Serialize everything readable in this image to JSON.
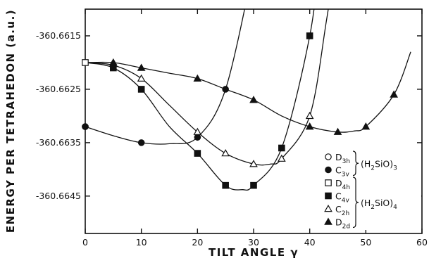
{
  "chart_data": {
    "type": "scatter",
    "xlabel": "TILT ANGLE γ",
    "ylabel": "ENERGY PER TETRAHEDON (a.u.)",
    "xlim": [
      0,
      60
    ],
    "ylim": [
      -360.6652,
      -360.661
    ],
    "x_ticks": [
      0,
      10,
      20,
      30,
      40,
      50,
      60
    ],
    "y_ticks": [
      -360.6615,
      -360.6625,
      -360.6635,
      -360.6645
    ],
    "y_tick_labels": [
      "-360.6615",
      "-360.6625",
      "-360.6635",
      "-360.6645"
    ],
    "grid": false,
    "legend_position": "right",
    "legend_groups": [
      {
        "label_main": "(H",
        "label_sub": "2",
        "label_end": "SiO)",
        "label_sub2": "3",
        "members": [
          "D3h",
          "C3v"
        ]
      },
      {
        "label_main": "(H",
        "label_sub": "2",
        "label_end": "SiO)",
        "label_sub2": "4",
        "members": [
          "D4h",
          "C4v",
          "C2h",
          "D2d"
        ]
      }
    ],
    "series": [
      {
        "name": "D3h",
        "name_main": "D",
        "name_sub": "3h",
        "marker": "open-circle",
        "x": [
          0
        ],
        "y": [
          -360.6632
        ],
        "curve": null
      },
      {
        "name": "C3v",
        "name_main": "C",
        "name_sub": "3v",
        "marker": "filled-circle",
        "x": [
          0,
          10,
          20,
          25
        ],
        "y": [
          -360.6632,
          -360.6635,
          -360.6634,
          -360.6625
        ],
        "curve": [
          [
            0,
            -360.6632
          ],
          [
            5,
            -360.66337
          ],
          [
            10,
            -360.6635
          ],
          [
            15,
            -360.66352
          ],
          [
            20,
            -360.6634
          ],
          [
            25,
            -360.6625
          ],
          [
            30,
            -360.6602
          ]
        ]
      },
      {
        "name": "D4h",
        "name_main": "D",
        "name_sub": "4h",
        "marker": "open-square",
        "x": [
          0
        ],
        "y": [
          -360.662
        ],
        "curve": null
      },
      {
        "name": "C4v",
        "name_main": "C",
        "name_sub": "4v",
        "marker": "filled-square",
        "x": [
          5,
          10,
          20,
          25,
          30,
          35,
          40
        ],
        "y": [
          -360.6621,
          -360.6625,
          -360.6637,
          -360.6643,
          -360.6643,
          -360.6636,
          -360.6615
        ],
        "curve": [
          [
            0,
            -360.662
          ],
          [
            5,
            -360.6621
          ],
          [
            10,
            -360.6625
          ],
          [
            15,
            -360.6632
          ],
          [
            20,
            -360.6637
          ],
          [
            25,
            -360.6643
          ],
          [
            28,
            -360.66438
          ],
          [
            30,
            -360.6643
          ],
          [
            35,
            -360.6636
          ],
          [
            40,
            -360.6615
          ],
          [
            42,
            -360.6598
          ]
        ]
      },
      {
        "name": "C2h",
        "name_main": "C",
        "name_sub": "2h",
        "marker": "open-triangle",
        "x": [
          10,
          20,
          25,
          30,
          35,
          40
        ],
        "y": [
          -360.6623,
          -360.6633,
          -360.6637,
          -360.6639,
          -360.6638,
          -360.663
        ],
        "curve": [
          [
            0,
            -360.662
          ],
          [
            5,
            -360.66205
          ],
          [
            10,
            -360.6623
          ],
          [
            15,
            -360.6628
          ],
          [
            20,
            -360.6633
          ],
          [
            25,
            -360.6637
          ],
          [
            30,
            -360.6639
          ],
          [
            33,
            -360.6639
          ],
          [
            35,
            -360.6638
          ],
          [
            40,
            -360.663
          ],
          [
            43,
            -360.6612
          ],
          [
            45,
            -360.6598
          ]
        ]
      },
      {
        "name": "D2d",
        "name_main": "D",
        "name_sub": "2d",
        "marker": "filled-triangle",
        "x": [
          5,
          10,
          20,
          30,
          40,
          45,
          50,
          55
        ],
        "y": [
          -360.662,
          -360.6621,
          -360.6623,
          -360.6627,
          -360.6632,
          -360.6633,
          -360.6632,
          -360.6626
        ],
        "curve": [
          [
            0,
            -360.662
          ],
          [
            5,
            -360.662
          ],
          [
            10,
            -360.6621
          ],
          [
            15,
            -360.6622
          ],
          [
            20,
            -360.6623
          ],
          [
            25,
            -360.6625
          ],
          [
            30,
            -360.6627
          ],
          [
            35,
            -360.663
          ],
          [
            40,
            -360.6632
          ],
          [
            45,
            -360.6633
          ],
          [
            48,
            -360.66328
          ],
          [
            50,
            -360.6632
          ],
          [
            55,
            -360.6626
          ],
          [
            58,
            -360.6618
          ]
        ]
      }
    ]
  }
}
